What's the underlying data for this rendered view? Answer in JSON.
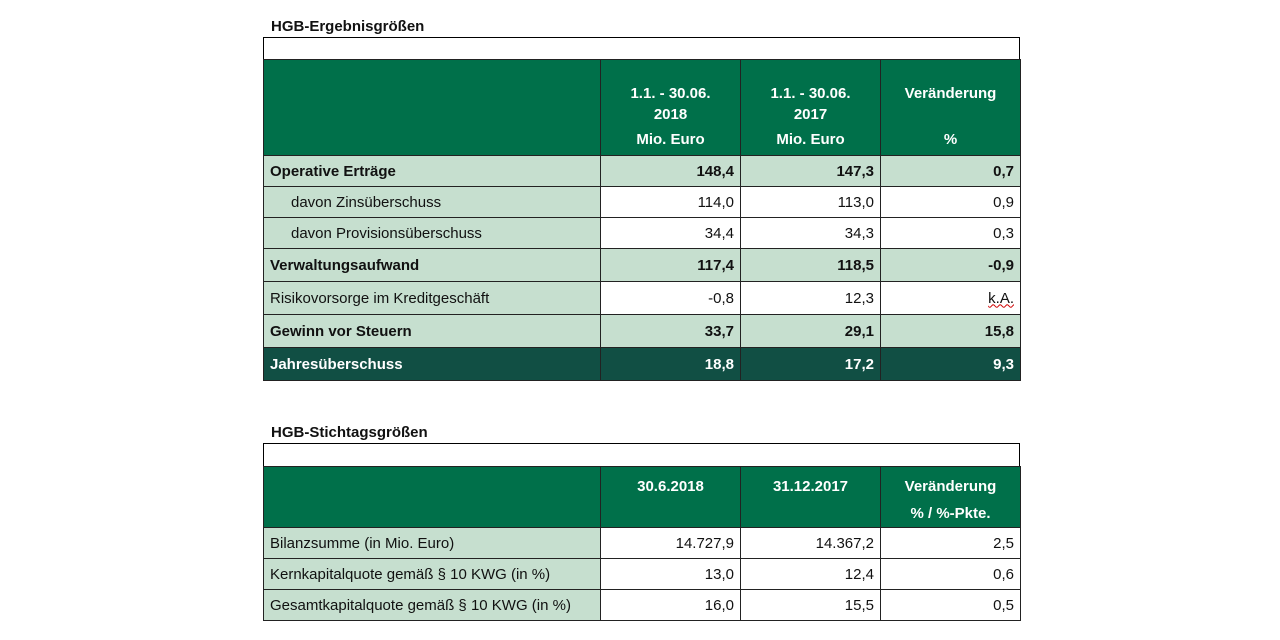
{
  "section1": {
    "title": "HGB-Ergebnisgrößen",
    "header": {
      "col1": {
        "line1": "1.1. - 30.06.",
        "line2": "2018",
        "unit": "Mio. Euro"
      },
      "col2": {
        "line1": "1.1. - 30.06.",
        "line2": "2017",
        "unit": "Mio. Euro"
      },
      "col3": {
        "line1": "Veränderung",
        "unit": "%"
      }
    },
    "rows": [
      {
        "label": "Operative Erträge",
        "v2018": "148,4",
        "v2017": "147,3",
        "change": "0,7"
      },
      {
        "label": "davon Zinsüberschuss",
        "v2018": "114,0",
        "v2017": "113,0",
        "change": "0,9"
      },
      {
        "label": "davon Provisionsüberschuss",
        "v2018": "34,4",
        "v2017": "34,3",
        "change": "0,3"
      },
      {
        "label": "Verwaltungsaufwand",
        "v2018": "117,4",
        "v2017": "118,5",
        "change": "-0,9"
      },
      {
        "label": "Risikovorsorge  im Kreditgeschäft",
        "v2018": "-0,8",
        "v2017": "12,3",
        "change": "k.A."
      },
      {
        "label": "Gewinn vor Steuern",
        "v2018": "33,7",
        "v2017": "29,1",
        "change": "15,8"
      },
      {
        "label": "Jahresüberschuss",
        "v2018": "18,8",
        "v2017": "17,2",
        "change": "9,3"
      }
    ]
  },
  "section2": {
    "title": "HGB-Stichtagsgrößen",
    "header": {
      "col1": "30.6.2018",
      "col2": "31.12.2017",
      "col3": {
        "line1": "Veränderung",
        "line2": "% / %-Pkte."
      }
    },
    "rows": [
      {
        "label": "Bilanzsumme  (in Mio. Euro)",
        "v1": "14.727,9",
        "v2": "14.367,2",
        "change": "2,5"
      },
      {
        "label": "Kernkapitalquote  gemäß  § 10 KWG (in %)",
        "v1": "13,0",
        "v2": "12,4",
        "change": "0,6"
      },
      {
        "label": "Gesamtkapitalquote  gemäß  § 10 KWG (in %)",
        "v1": "16,0",
        "v2": "15,5",
        "change": "0,5"
      }
    ]
  },
  "colors": {
    "header_green": "#00704a",
    "row_light_green": "#c6dfcf",
    "final_row_dark": "#114f44"
  }
}
